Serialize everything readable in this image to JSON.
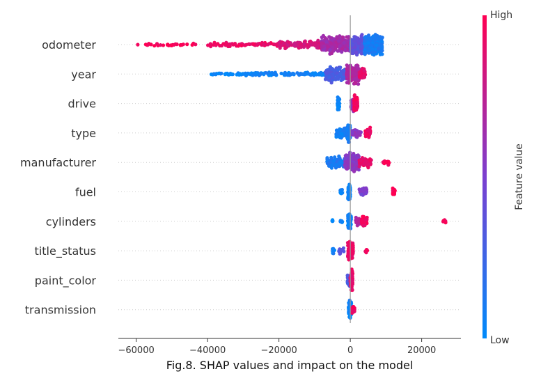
{
  "chart_data": {
    "type": "scatter",
    "subtype": "shap-beeswarm",
    "caption": "Fig.8. SHAP values and impact on the model",
    "xlim": [
      -65000,
      31000
    ],
    "x_ticks": [
      -60000,
      -40000,
      -20000,
      0,
      20000
    ],
    "x_tick_labels": [
      "−60000",
      "−40000",
      "−20000",
      "0",
      "20000"
    ],
    "colorbar": {
      "high_label": "High",
      "low_label": "Low",
      "title": "Feature value",
      "low_color": "#008bfb",
      "mid_color": "#7b3fd0",
      "high_color": "#ff0052"
    },
    "grid": "dotted horizontal per feature",
    "features": [
      {
        "name": "odometer",
        "clusters": [
          {
            "from": -62000,
            "to": -40000,
            "value": 0.98,
            "spread": 0.18,
            "count": 30
          },
          {
            "from": -40000,
            "to": -20000,
            "value": 0.93,
            "spread": 0.22,
            "count": 70
          },
          {
            "from": -20000,
            "to": -8000,
            "value": 0.85,
            "spread": 0.45,
            "count": 110
          },
          {
            "from": -8000,
            "to": 0,
            "value": 0.65,
            "spread": 0.9,
            "count": 220
          },
          {
            "from": 0,
            "to": 4000,
            "value": 0.38,
            "spread": 1.0,
            "count": 220
          },
          {
            "from": 4000,
            "to": 9000,
            "value": 0.1,
            "spread": 1.0,
            "count": 260
          }
        ]
      },
      {
        "name": "year",
        "clusters": [
          {
            "from": -39000,
            "to": -30000,
            "value": 0.03,
            "spread": 0.12,
            "count": 30
          },
          {
            "from": -30000,
            "to": -7000,
            "value": 0.06,
            "spread": 0.22,
            "count": 110
          },
          {
            "from": -7000,
            "to": -1000,
            "value": 0.3,
            "spread": 0.8,
            "count": 140
          },
          {
            "from": -1000,
            "to": 2500,
            "value": 0.7,
            "spread": 1.0,
            "count": 180
          },
          {
            "from": 2500,
            "to": 4200,
            "value": 0.9,
            "spread": 0.6,
            "count": 50
          }
        ]
      },
      {
        "name": "drive",
        "clusters": [
          {
            "from": -3600,
            "to": -3000,
            "value": 0.03,
            "spread": 0.75,
            "count": 45
          },
          {
            "from": 200,
            "to": 1000,
            "value": 0.6,
            "spread": 0.7,
            "count": 50
          },
          {
            "from": 1000,
            "to": 2000,
            "value": 0.95,
            "spread": 0.9,
            "count": 60
          }
        ]
      },
      {
        "name": "type",
        "clusters": [
          {
            "from": -4000,
            "to": -1000,
            "value": 0.08,
            "spread": 0.5,
            "count": 70
          },
          {
            "from": -1000,
            "to": 0,
            "value": 0.12,
            "spread": 1.0,
            "count": 60
          },
          {
            "from": 500,
            "to": 3000,
            "value": 0.55,
            "spread": 0.5,
            "count": 50
          },
          {
            "from": 4200,
            "to": 5600,
            "value": 0.95,
            "spread": 0.65,
            "count": 50
          }
        ]
      },
      {
        "name": "manufacturer",
        "clusters": [
          {
            "from": -6500,
            "to": -1500,
            "value": 0.12,
            "spread": 0.6,
            "count": 120
          },
          {
            "from": -1500,
            "to": 2500,
            "value": 0.55,
            "spread": 1.0,
            "count": 170
          },
          {
            "from": 2500,
            "to": 6000,
            "value": 0.9,
            "spread": 0.5,
            "count": 60
          },
          {
            "from": 9000,
            "to": 11000,
            "value": 0.97,
            "spread": 0.25,
            "count": 14
          }
        ]
      },
      {
        "name": "fuel",
        "clusters": [
          {
            "from": -2800,
            "to": -2200,
            "value": 0.05,
            "spread": 0.3,
            "count": 12
          },
          {
            "from": -700,
            "to": 0,
            "value": 0.05,
            "spread": 1.0,
            "count": 50
          },
          {
            "from": 2500,
            "to": 4700,
            "value": 0.5,
            "spread": 0.45,
            "count": 40
          },
          {
            "from": 11800,
            "to": 12600,
            "value": 0.98,
            "spread": 0.45,
            "count": 16
          }
        ]
      },
      {
        "name": "cylinders",
        "clusters": [
          {
            "from": -5300,
            "to": -4700,
            "value": 0.05,
            "spread": 0.25,
            "count": 6
          },
          {
            "from": -2800,
            "to": -2200,
            "value": 0.05,
            "spread": 0.2,
            "count": 6
          },
          {
            "from": -700,
            "to": 300,
            "value": 0.05,
            "spread": 1.0,
            "count": 55
          },
          {
            "from": 1500,
            "to": 2500,
            "value": 0.7,
            "spread": 0.5,
            "count": 20
          },
          {
            "from": 3000,
            "to": 4700,
            "value": 0.95,
            "spread": 0.7,
            "count": 45
          },
          {
            "from": 26000,
            "to": 26800,
            "value": 0.98,
            "spread": 0.25,
            "count": 6
          }
        ]
      },
      {
        "name": "title_status",
        "clusters": [
          {
            "from": -5000,
            "to": -4400,
            "value": 0.05,
            "spread": 0.35,
            "count": 8
          },
          {
            "from": -3200,
            "to": -1800,
            "value": 0.35,
            "spread": 0.35,
            "count": 12
          },
          {
            "from": -700,
            "to": 800,
            "value": 0.92,
            "spread": 1.0,
            "count": 100
          },
          {
            "from": 4200,
            "to": 4800,
            "value": 0.95,
            "spread": 0.25,
            "count": 6
          }
        ]
      },
      {
        "name": "paint_color",
        "clusters": [
          {
            "from": -800,
            "to": 0,
            "value": 0.3,
            "spread": 0.8,
            "count": 45
          },
          {
            "from": 0,
            "to": 700,
            "value": 0.9,
            "spread": 1.0,
            "count": 55
          }
        ]
      },
      {
        "name": "transmission",
        "clusters": [
          {
            "from": -500,
            "to": 300,
            "value": 0.05,
            "spread": 1.0,
            "count": 55
          },
          {
            "from": 300,
            "to": 1200,
            "value": 0.95,
            "spread": 0.4,
            "count": 30
          }
        ]
      }
    ]
  }
}
